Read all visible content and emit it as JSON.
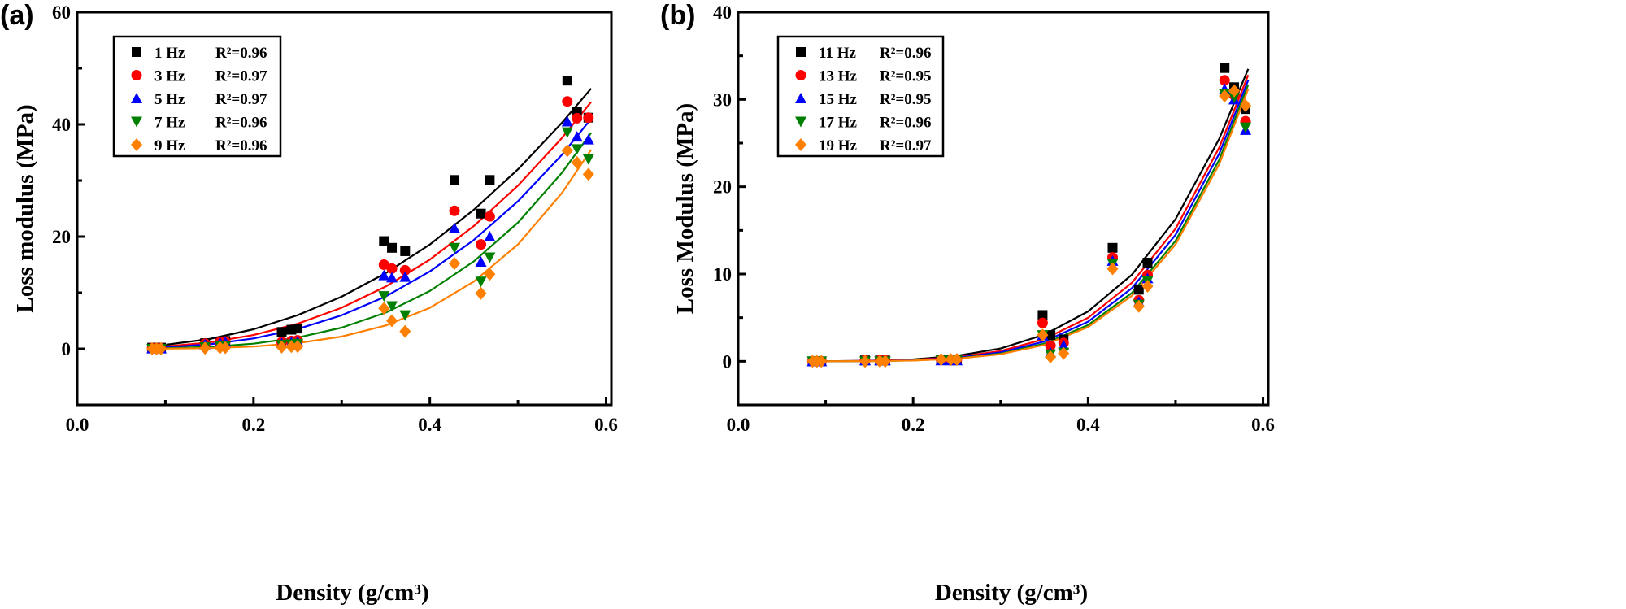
{
  "chart_data": [
    {
      "panel_label": "(a)",
      "type": "scatter",
      "xlabel": "Density (g/cm³)",
      "ylabel": "Loss modulus (MPa)",
      "xlim": [
        0,
        0.6
      ],
      "ylim": [
        -10,
        60
      ],
      "xticks": [
        "0.0",
        "0.2",
        "0.4",
        "0.6"
      ],
      "xtick_values": [
        0,
        0.2,
        0.4,
        0.6
      ],
      "yticks": [
        "0",
        "20",
        "40",
        "60"
      ],
      "ytick_values": [
        0,
        20,
        40,
        60
      ],
      "grid": false,
      "legend_position": "top-left",
      "x": [
        0.085,
        0.09,
        0.095,
        0.145,
        0.162,
        0.168,
        0.232,
        0.243,
        0.25,
        0.348,
        0.357,
        0.372,
        0.428,
        0.458,
        0.468,
        0.556,
        0.567,
        0.58
      ],
      "fit_x": [
        0.09,
        0.15,
        0.2,
        0.25,
        0.3,
        0.35,
        0.4,
        0.45,
        0.5,
        0.55,
        0.583
      ],
      "series": [
        {
          "name": "1 Hz",
          "r2_label": "R²=0.96",
          "marker": "square",
          "color": "#000000",
          "values": [
            0.2,
            0.2,
            0.2,
            1.0,
            1.3,
            1.4,
            3.0,
            3.4,
            3.6,
            19.2,
            18.0,
            17.4,
            30.1,
            24.1,
            30.1,
            47.8,
            42.3,
            41.2
          ],
          "fit": [
            0.51,
            1.74,
            3.48,
            5.98,
            9.29,
            13.5,
            18.6,
            24.8,
            32.0,
            40.3,
            46.4
          ]
        },
        {
          "name": "3 Hz",
          "r2_label": "R²=0.97",
          "marker": "circle",
          "color": "#ff0000",
          "values": [
            0.1,
            0.1,
            0.1,
            0.9,
            1.2,
            1.3,
            1.2,
            1.4,
            1.5,
            15.0,
            14.3,
            14.0,
            24.6,
            18.6,
            23.6,
            44.1,
            41.1,
            41.2
          ],
          "fit": [
            0.28,
            1.13,
            2.45,
            4.47,
            7.32,
            11.1,
            15.9,
            21.9,
            29.1,
            37.6,
            44.0
          ]
        },
        {
          "name": "5 Hz",
          "r2_label": "R²=0.97",
          "marker": "triangle-up",
          "color": "#0000ff",
          "values": [
            0.05,
            0.05,
            0.05,
            0.8,
            1.1,
            1.2,
            1.0,
            1.2,
            1.3,
            13.1,
            12.7,
            12.8,
            21.5,
            15.5,
            20.0,
            40.5,
            37.8,
            37.3
          ],
          "fit": [
            0.18,
            0.8,
            1.84,
            3.52,
            5.97,
            9.34,
            13.8,
            19.4,
            26.3,
            34.6,
            41.0
          ]
        },
        {
          "name": "7 Hz",
          "r2_label": "R²=0.96",
          "marker": "triangle-down",
          "color": "#008000",
          "values": [
            0,
            0,
            0,
            0.3,
            0.5,
            0.5,
            0.7,
            0.8,
            0.9,
            9.4,
            7.6,
            6.0,
            18.0,
            12.0,
            16.3,
            38.6,
            35.6,
            33.8
          ],
          "fit": [
            0.06,
            0.33,
            0.91,
            1.99,
            3.77,
            6.45,
            10.3,
            15.6,
            22.5,
            31.4,
            38.5
          ]
        },
        {
          "name": "9 Hz",
          "r2_label": "R²=0.96",
          "marker": "diamond",
          "color": "#ff8000",
          "values": [
            0,
            0,
            0,
            0.1,
            0.2,
            0.2,
            0.3,
            0.4,
            0.4,
            7.2,
            5.0,
            3.1,
            15.2,
            9.9,
            13.3,
            35.3,
            33.2,
            31.1
          ],
          "fit": [
            0.01,
            0.12,
            0.4,
            1.01,
            2.18,
            4.16,
            7.3,
            12.0,
            18.6,
            27.8,
            35.5
          ]
        }
      ]
    },
    {
      "panel_label": "(b)",
      "type": "scatter",
      "xlabel": "Density (g/cm³)",
      "ylabel": "Loss Modulus (MPa)",
      "xlim": [
        0,
        0.6
      ],
      "ylim": [
        -5,
        40
      ],
      "xticks": [
        "0.0",
        "0.2",
        "0.4",
        "0.6"
      ],
      "xtick_values": [
        0,
        0.2,
        0.4,
        0.6
      ],
      "yticks": [
        "0",
        "10",
        "20",
        "30",
        "40"
      ],
      "ytick_values": [
        0,
        10,
        20,
        30,
        40
      ],
      "grid": false,
      "legend_position": "top-left",
      "x": [
        0.085,
        0.09,
        0.095,
        0.145,
        0.162,
        0.168,
        0.232,
        0.243,
        0.25,
        0.348,
        0.357,
        0.372,
        0.428,
        0.458,
        0.468,
        0.556,
        0.567,
        0.58
      ],
      "fit_x": [
        0.09,
        0.15,
        0.2,
        0.25,
        0.3,
        0.35,
        0.4,
        0.45,
        0.5,
        0.55,
        0.583
      ],
      "series": [
        {
          "name": "11 Hz",
          "r2_label": "R²=0.96",
          "marker": "square",
          "color": "#000000",
          "values": [
            0,
            0,
            0,
            0.1,
            0.1,
            0.1,
            0.2,
            0.2,
            0.2,
            5.3,
            3.0,
            2.5,
            13.0,
            8.2,
            11.3,
            33.6,
            31.4,
            28.9
          ],
          "fit": [
            0.005,
            0.06,
            0.22,
            0.63,
            1.47,
            3.05,
            5.71,
            9.92,
            16.3,
            25.5,
            33.5
          ]
        },
        {
          "name": "13 Hz",
          "r2_label": "R²=0.95",
          "marker": "circle",
          "color": "#ff0000",
          "values": [
            0,
            0,
            0,
            0.1,
            0.1,
            0.1,
            0.2,
            0.2,
            0.2,
            4.4,
            1.8,
            2.1,
            11.9,
            7.0,
            9.9,
            32.2,
            30.5,
            27.5
          ],
          "fit": [
            0.003,
            0.04,
            0.16,
            0.48,
            1.18,
            2.55,
            4.99,
            8.99,
            15.2,
            24.5,
            32.8
          ]
        },
        {
          "name": "15 Hz",
          "r2_label": "R²=0.95",
          "marker": "triangle-up",
          "color": "#0000ff",
          "values": [
            0,
            0,
            0,
            0.1,
            0.1,
            0.1,
            0.1,
            0.1,
            0.1,
            3.0,
            1.0,
            1.8,
            11.5,
            6.8,
            9.5,
            31.2,
            30.0,
            26.5
          ],
          "fit": [
            0.002,
            0.03,
            0.12,
            0.39,
            1.02,
            2.27,
            4.54,
            8.37,
            14.5,
            23.8,
            32.2
          ]
        },
        {
          "name": "17 Hz",
          "r2_label": "R²=0.96",
          "marker": "triangle-down",
          "color": "#008000",
          "values": [
            0,
            0,
            0,
            0,
            0,
            0,
            0.1,
            0.1,
            0.1,
            3.0,
            0.8,
            1.0,
            11.2,
            6.5,
            9.2,
            30.6,
            30.2,
            26.8
          ],
          "fit": [
            0.001,
            0.02,
            0.1,
            0.33,
            0.88,
            2.02,
            4.15,
            7.83,
            13.8,
            23.1,
            31.7
          ]
        },
        {
          "name": "19 Hz",
          "r2_label": "R²=0.97",
          "marker": "diamond",
          "color": "#ff8000",
          "values": [
            0,
            0,
            0,
            0,
            0,
            0,
            0.2,
            0.2,
            0.2,
            3.0,
            0.5,
            0.9,
            10.6,
            6.3,
            8.6,
            30.4,
            31.0,
            29.3
          ],
          "fit": [
            0.001,
            0.02,
            0.09,
            0.3,
            0.81,
            1.88,
            3.93,
            7.51,
            13.4,
            22.6,
            31.2
          ]
        }
      ]
    }
  ]
}
